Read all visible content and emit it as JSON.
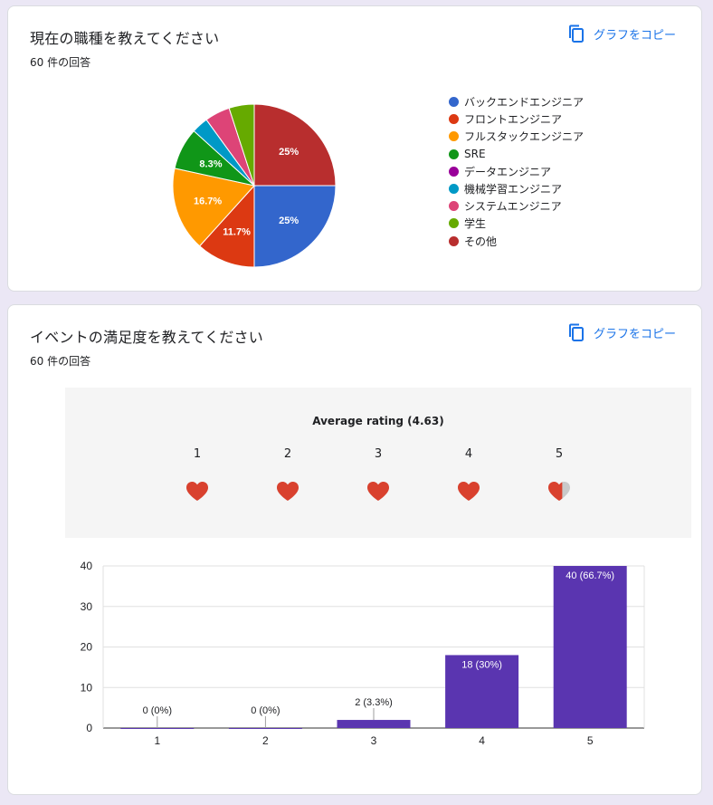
{
  "q1": {
    "title": "現在の職種を教えてください",
    "count": "60 件の回答",
    "copy_label": "グラフをコピー",
    "legend": [
      {
        "label": "バックエンドエンジニア",
        "color": "#3366cc"
      },
      {
        "label": "フロントエンジニア",
        "color": "#dc3912"
      },
      {
        "label": "フルスタックエンジニア",
        "color": "#ff9900"
      },
      {
        "label": "SRE",
        "color": "#109618"
      },
      {
        "label": "データエンジニア",
        "color": "#990099"
      },
      {
        "label": "機械学習エンジニア",
        "color": "#0099c6"
      },
      {
        "label": "システムエンジニア",
        "color": "#dd4477"
      },
      {
        "label": "学生",
        "color": "#66aa00"
      },
      {
        "label": "その他",
        "color": "#b82e2e"
      }
    ]
  },
  "q2": {
    "title": "イベントの満足度を教えてください",
    "count": "60 件の回答",
    "copy_label": "グラフをコピー",
    "average": "Average rating (4.63)",
    "average_value": 4.63,
    "rating_labels": [
      "1",
      "2",
      "3",
      "4",
      "5"
    ],
    "heart_color": "#d9412e"
  },
  "chart_data": [
    {
      "type": "pie",
      "title": "現在の職種を教えてください",
      "series": [
        {
          "label": "バックエンドエンジニア",
          "value": 25,
          "data_label": "25%"
        },
        {
          "label": "フロントエンジニア",
          "value": 11.7,
          "data_label": "11.7%"
        },
        {
          "label": "フルスタックエンジニア",
          "value": 16.7,
          "data_label": "16.7%"
        },
        {
          "label": "SRE",
          "value": 8.3,
          "data_label": "8.3%"
        },
        {
          "label": "データエンジニア",
          "value": 0,
          "data_label": ""
        },
        {
          "label": "機械学習エンジニア",
          "value": 3.3,
          "data_label": ""
        },
        {
          "label": "システムエンジニア",
          "value": 5,
          "data_label": ""
        },
        {
          "label": "学生",
          "value": 5,
          "data_label": ""
        },
        {
          "label": "その他",
          "value": 25,
          "data_label": "25%"
        }
      ],
      "legend_position": "right"
    },
    {
      "type": "bar",
      "title": "イベントの満足度を教えてください",
      "categories": [
        "1",
        "2",
        "3",
        "4",
        "5"
      ],
      "values": [
        0,
        0,
        2,
        18,
        40
      ],
      "data_labels": [
        "0 (0%)",
        "0 (0%)",
        "2 (3.3%)",
        "18 (30%)",
        "40 (66.7%)"
      ],
      "y_ticks": [
        "0",
        "10",
        "20",
        "30",
        "40"
      ],
      "ylim": [
        0,
        40
      ],
      "bar_color": "#5a35b0",
      "grid": true
    }
  ]
}
